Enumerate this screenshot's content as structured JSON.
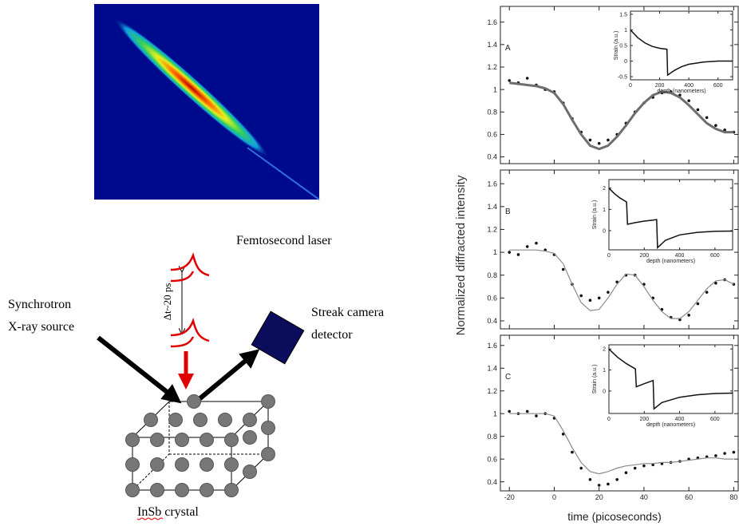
{
  "diagram": {
    "laser": "Femtosecond laser",
    "delay": "Δt~20 ps",
    "source_line1": "Synchrotron",
    "source_line2": "X-ray source",
    "detector_line1": "Streak camera",
    "detector_line2": "detector",
    "crystal": "InSb crystal"
  },
  "figure": {
    "ylabel": "Normalized diffracted intensity",
    "xlabel": "time (picoseconds)"
  },
  "chart_data": [
    {
      "type": "line",
      "label": "A",
      "xlim": [
        -24,
        82
      ],
      "ylim": [
        0.34,
        1.74
      ],
      "xticks": [
        -20,
        0,
        20,
        40,
        60,
        80
      ],
      "yticks": [
        0.4,
        0.6,
        0.8,
        1,
        1.2,
        1.4,
        1.6
      ],
      "show_xtick_labels": false,
      "x": [
        -20,
        -16,
        -12,
        -8,
        -4,
        0,
        4,
        8,
        12,
        16,
        20,
        24,
        28,
        32,
        36,
        40,
        44,
        48,
        52,
        56,
        60,
        64,
        68,
        72,
        76,
        80
      ],
      "series": [
        {
          "color": "#111111",
          "style": "points",
          "values": [
            1.08,
            1.06,
            1.1,
            1.04,
            1.0,
            0.98,
            0.88,
            0.74,
            0.62,
            0.55,
            0.52,
            0.55,
            0.6,
            0.7,
            0.8,
            0.88,
            0.93,
            0.97,
            0.98,
            0.95,
            0.9,
            0.82,
            0.75,
            0.68,
            0.64,
            0.62
          ]
        },
        {
          "color": "#6e6e6e",
          "style": "line",
          "width": 3,
          "values": [
            1.06,
            1.05,
            1.04,
            1.03,
            1.01,
            0.97,
            0.87,
            0.73,
            0.6,
            0.5,
            0.47,
            0.5,
            0.58,
            0.68,
            0.79,
            0.88,
            0.95,
            0.98,
            0.97,
            0.93,
            0.86,
            0.78,
            0.7,
            0.65,
            0.62,
            0.62
          ]
        }
      ]
    },
    {
      "type": "line",
      "label": "B",
      "xlim": [
        -24,
        82
      ],
      "ylim": [
        0.33,
        1.72
      ],
      "xticks": [
        -20,
        0,
        20,
        40,
        60,
        80
      ],
      "yticks": [
        0.4,
        0.6,
        0.8,
        1,
        1.2,
        1.4,
        1.6
      ],
      "show_xtick_labels": false,
      "x": [
        -20,
        -16,
        -12,
        -8,
        -4,
        0,
        4,
        8,
        12,
        16,
        20,
        24,
        28,
        32,
        36,
        40,
        44,
        48,
        52,
        56,
        60,
        64,
        68,
        72,
        76,
        80
      ],
      "series": [
        {
          "color": "#111111",
          "style": "points",
          "values": [
            1.0,
            0.98,
            1.05,
            1.08,
            1.02,
            0.98,
            0.85,
            0.72,
            0.62,
            0.58,
            0.6,
            0.65,
            0.74,
            0.8,
            0.8,
            0.72,
            0.6,
            0.5,
            0.43,
            0.41,
            0.45,
            0.55,
            0.65,
            0.73,
            0.76,
            0.72
          ]
        },
        {
          "color": "#8a8a8a",
          "style": "line",
          "width": 1.2,
          "values": [
            1.02,
            1.02,
            1.02,
            1.02,
            1.01,
            0.99,
            0.9,
            0.72,
            0.56,
            0.49,
            0.5,
            0.6,
            0.72,
            0.81,
            0.8,
            0.7,
            0.58,
            0.48,
            0.42,
            0.42,
            0.48,
            0.58,
            0.68,
            0.75,
            0.76,
            0.72
          ]
        }
      ]
    },
    {
      "type": "line",
      "label": "C",
      "xlim": [
        -24,
        82
      ],
      "ylim": [
        0.32,
        1.69
      ],
      "xticks": [
        -20,
        0,
        20,
        40,
        60,
        80
      ],
      "yticks": [
        0.4,
        0.6,
        0.8,
        1,
        1.2,
        1.4,
        1.6
      ],
      "show_xtick_labels": true,
      "x": [
        -20,
        -16,
        -12,
        -8,
        -4,
        0,
        4,
        8,
        12,
        16,
        20,
        24,
        28,
        32,
        36,
        40,
        44,
        48,
        52,
        56,
        60,
        64,
        68,
        72,
        76,
        80
      ],
      "series": [
        {
          "color": "#111111",
          "style": "points",
          "values": [
            1.02,
            1.0,
            1.02,
            0.98,
            1.0,
            0.96,
            0.82,
            0.66,
            0.52,
            0.42,
            0.37,
            0.38,
            0.42,
            0.48,
            0.52,
            0.54,
            0.55,
            0.56,
            0.57,
            0.58,
            0.6,
            0.61,
            0.62,
            0.63,
            0.65,
            0.66
          ]
        },
        {
          "color": "#8a8a8a",
          "style": "line",
          "width": 1.2,
          "values": [
            1.0,
            1.0,
            1.0,
            1.0,
            1.0,
            0.98,
            0.85,
            0.7,
            0.57,
            0.49,
            0.47,
            0.49,
            0.52,
            0.54,
            0.55,
            0.56,
            0.56,
            0.57,
            0.57,
            0.58,
            0.59,
            0.6,
            0.61,
            0.61,
            0.6,
            0.6
          ]
        }
      ]
    },
    {
      "type": "line",
      "xlabel": "depth (nanometers)",
      "ylabel": "Strain (a.u.)",
      "xlim": [
        0,
        700
      ],
      "ylim": [
        -0.6,
        1.6
      ],
      "xticks": [
        0,
        200,
        400,
        600
      ],
      "yticks": [
        -0.5,
        0,
        0.5,
        1,
        1.5
      ],
      "show_xtick_labels": true,
      "x": [
        0,
        50,
        100,
        150,
        200,
        250,
        255,
        300,
        350,
        400,
        500,
        600,
        700
      ],
      "series": [
        {
          "color": "#111111",
          "style": "line",
          "width": 1.5,
          "values": [
            1.0,
            0.75,
            0.58,
            0.47,
            0.41,
            0.38,
            -0.45,
            -0.3,
            -0.18,
            -0.1,
            -0.03,
            0,
            0
          ]
        }
      ]
    },
    {
      "type": "line",
      "xlabel": "depth (nanometers)",
      "ylabel": "Strain (a.u.)",
      "xlim": [
        0,
        700
      ],
      "ylim": [
        -0.9,
        2.4
      ],
      "xticks": [
        0,
        200,
        400,
        600
      ],
      "yticks": [
        0,
        1,
        2
      ],
      "show_xtick_labels": true,
      "x": [
        0,
        30,
        60,
        100,
        105,
        150,
        200,
        250,
        270,
        275,
        320,
        400,
        500,
        600,
        700
      ],
      "series": [
        {
          "color": "#111111",
          "style": "line",
          "width": 1.5,
          "values": [
            2.0,
            1.75,
            1.55,
            1.35,
            0.3,
            0.38,
            0.45,
            0.5,
            0.52,
            -0.8,
            -0.45,
            -0.2,
            -0.08,
            -0.03,
            -0.02
          ]
        }
      ]
    },
    {
      "type": "line",
      "xlabel": "depth (nanometers)",
      "ylabel": "Strain (a.u.)",
      "xlim": [
        0,
        700
      ],
      "ylim": [
        -1.07,
        2.2
      ],
      "xticks": [
        0,
        200,
        400,
        600
      ],
      "yticks": [
        0,
        1,
        2
      ],
      "show_xtick_labels": true,
      "x": [
        0,
        50,
        100,
        150,
        155,
        200,
        250,
        255,
        300,
        400,
        500,
        600,
        700
      ],
      "series": [
        {
          "color": "#111111",
          "style": "line",
          "width": 1.5,
          "values": [
            2.0,
            1.6,
            1.3,
            1.05,
            0.2,
            0.35,
            0.5,
            -0.85,
            -0.55,
            -0.3,
            -0.18,
            -0.12,
            -0.1
          ]
        }
      ]
    }
  ]
}
